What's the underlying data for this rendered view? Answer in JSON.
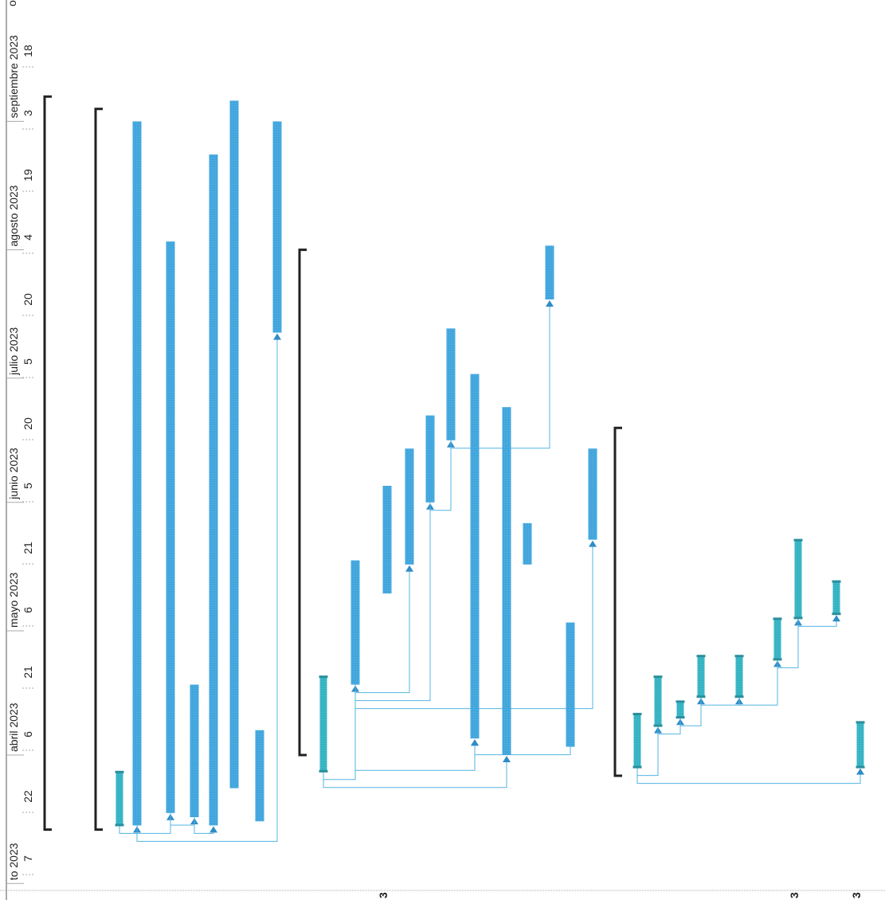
{
  "chart_data": {
    "type": "gantt",
    "orientation": "rotated-90ccw",
    "title": "",
    "axis": {
      "month_labels": [
        {
          "label": "septiembre 2023",
          "date": "2023-09-01"
        },
        {
          "label": "agosto 2023",
          "date": "2023-08-01"
        },
        {
          "label": "julio 2023",
          "date": "2023-07-01"
        },
        {
          "label": "junio 2023",
          "date": "2023-06-01"
        },
        {
          "label": "mayo 2023",
          "date": "2023-05-01"
        },
        {
          "label": "abril 2023",
          "date": "2023-04-01"
        },
        {
          "label": "to 2023",
          "date": "2023-03-01"
        }
      ],
      "tick_labels": [
        {
          "label": "18",
          "date": "2023-09-18"
        },
        {
          "label": "3",
          "date": "2023-09-03"
        },
        {
          "label": "19",
          "date": "2023-08-19"
        },
        {
          "label": "4",
          "date": "2023-08-04"
        },
        {
          "label": "20",
          "date": "2023-07-20"
        },
        {
          "label": "5",
          "date": "2023-07-05"
        },
        {
          "label": "20",
          "date": "2023-06-20"
        },
        {
          "label": "5",
          "date": "2023-06-05"
        },
        {
          "label": "21",
          "date": "2023-05-21"
        },
        {
          "label": "6",
          "date": "2023-05-06"
        },
        {
          "label": "21",
          "date": "2023-04-21"
        },
        {
          "label": "6",
          "date": "2023-04-06"
        },
        {
          "label": "22",
          "date": "2023-03-22"
        },
        {
          "label": "7",
          "date": "2023-03-07"
        }
      ],
      "edge_fragment": "o",
      "range": [
        "2023-03-01",
        "2023-10-03"
      ]
    },
    "summaries": [
      {
        "row": 1,
        "start": "2023-03-14",
        "end": "2023-09-07"
      },
      {
        "row": 2,
        "start": "2023-03-14",
        "end": "2023-09-04"
      },
      {
        "row": 3,
        "start": "2023-04-01",
        "end": "2023-08-01"
      },
      {
        "row": 4,
        "start": "2023-03-27",
        "end": "2023-06-19"
      }
    ],
    "tasks": [
      {
        "id": "t1",
        "row": 5,
        "start": "2023-03-15",
        "end": "2023-03-28",
        "style": "milestone-teal"
      },
      {
        "id": "t2",
        "row": 6,
        "start": "2023-03-15",
        "end": "2023-09-01"
      },
      {
        "id": "t3",
        "row": 7,
        "start": "2023-03-18",
        "end": "2023-08-03"
      },
      {
        "id": "t4",
        "row": 8,
        "start": "2023-03-17",
        "end": "2023-04-18"
      },
      {
        "id": "t5",
        "row": 9,
        "start": "2023-03-15",
        "end": "2023-08-24"
      },
      {
        "id": "t6",
        "row": 10,
        "start": "2023-03-24",
        "end": "2023-09-06"
      },
      {
        "id": "t7",
        "row": 11,
        "start": "2023-03-16",
        "end": "2023-04-07"
      },
      {
        "id": "t8",
        "row": 12,
        "start": "2023-07-12",
        "end": "2023-09-01"
      },
      {
        "id": "t9",
        "row": 13,
        "start": "2023-03-28",
        "end": "2023-04-20",
        "style": "milestone-teal"
      },
      {
        "id": "t10",
        "row": 14,
        "start": "2023-04-18",
        "end": "2023-05-18"
      },
      {
        "id": "t11",
        "row": 15,
        "start": "2023-05-10",
        "end": "2023-06-05"
      },
      {
        "id": "t12",
        "row": 16,
        "start": "2023-05-17",
        "end": "2023-06-14"
      },
      {
        "id": "t13",
        "row": 17,
        "start": "2023-06-01",
        "end": "2023-06-22"
      },
      {
        "id": "t14",
        "row": 18,
        "start": "2023-06-16",
        "end": "2023-07-13"
      },
      {
        "id": "t15",
        "row": 19,
        "start": "2023-04-03",
        "end": "2023-05-03"
      },
      {
        "id": "t16",
        "row": 20,
        "start": "2023-04-05",
        "end": "2023-07-02"
      },
      {
        "id": "t17",
        "row": 21,
        "start": "2023-04-01",
        "end": "2023-06-24"
      },
      {
        "id": "t18",
        "row": 22,
        "start": "2023-05-17",
        "end": "2023-05-27"
      },
      {
        "id": "t19",
        "row": 23,
        "start": "2023-07-20",
        "end": "2023-08-02"
      },
      {
        "id": "t20",
        "row": 24,
        "start": "2023-05-23",
        "end": "2023-06-14"
      },
      {
        "id": "t21",
        "row": 25,
        "start": "2023-03-29",
        "end": "2023-04-11",
        "style": "milestone-teal"
      },
      {
        "id": "t22",
        "row": 26,
        "start": "2023-04-08",
        "end": "2023-04-20",
        "style": "milestone-teal"
      },
      {
        "id": "t23",
        "row": 27,
        "start": "2023-04-10",
        "end": "2023-04-14",
        "style": "milestone-teal"
      },
      {
        "id": "t24",
        "row": 28,
        "start": "2023-04-15",
        "end": "2023-04-25",
        "style": "milestone-teal"
      },
      {
        "id": "t25",
        "row": 29,
        "start": "2023-04-15",
        "end": "2023-04-25",
        "style": "milestone-teal"
      },
      {
        "id": "t26",
        "row": 30,
        "start": "2023-04-24",
        "end": "2023-05-04",
        "style": "milestone-teal"
      },
      {
        "id": "t27",
        "row": 31,
        "start": "2023-05-04",
        "end": "2023-05-23",
        "style": "milestone-teal"
      },
      {
        "id": "t28",
        "row": 32,
        "start": "2023-05-05",
        "end": "2023-05-13",
        "style": "milestone-teal"
      },
      {
        "id": "t29",
        "row": 33,
        "start": "2023-03-29",
        "end": "2023-04-09",
        "style": "milestone-teal"
      }
    ],
    "links": [
      {
        "from": "t1",
        "to": "t2"
      },
      {
        "from": "t2",
        "to": "t3"
      },
      {
        "from": "t3",
        "to": "t4"
      },
      {
        "from": "t4",
        "to": "t5"
      },
      {
        "from": "t2",
        "to": "t8"
      },
      {
        "from": "t9",
        "to": "t10"
      },
      {
        "from": "t10",
        "to": "t12"
      },
      {
        "from": "t10",
        "to": "t13"
      },
      {
        "from": "t13",
        "to": "t14"
      },
      {
        "from": "t14",
        "to": "t19"
      },
      {
        "from": "t10",
        "to": "t20"
      },
      {
        "from": "t10",
        "to": "t16"
      },
      {
        "from": "t15",
        "to": "t16"
      },
      {
        "from": "t9",
        "to": "t17"
      },
      {
        "from": "t21",
        "to": "t22"
      },
      {
        "from": "t22",
        "to": "t23"
      },
      {
        "from": "t23",
        "to": "t24"
      },
      {
        "from": "t24",
        "to": "t25"
      },
      {
        "from": "t25",
        "to": "t26"
      },
      {
        "from": "t26",
        "to": "t27"
      },
      {
        "from": "t27",
        "to": "t28"
      },
      {
        "from": "t21",
        "to": "t29"
      }
    ],
    "colors": {
      "bar": "#42a6dd",
      "bar_edge": "#2f8cc6",
      "milestone": "#35b3c3",
      "milestone_cap": "#2a8f9b",
      "summary": "#222222",
      "link": "#52b5e3",
      "axis_line": "#555555",
      "grid": "#aaaaaa"
    },
    "bottom_fragments": [
      {
        "text": "3",
        "row": 15
      },
      {
        "text": "3",
        "row": 31
      },
      {
        "text": "3",
        "row": 33
      }
    ],
    "grid": false,
    "legend": "none"
  }
}
